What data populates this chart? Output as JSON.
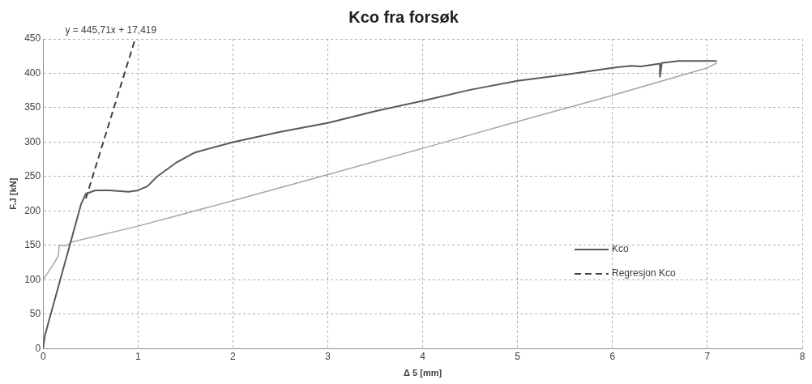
{
  "chart_data": {
    "type": "line",
    "title": "Kco fra forsøk",
    "xlabel": "Δ 5 [mm]",
    "ylabel": "F.J [kN]",
    "xlim": [
      0,
      8
    ],
    "xticks": [
      0,
      1,
      2,
      3,
      4,
      5,
      6,
      7,
      8
    ],
    "ylim": [
      0,
      450
    ],
    "yticks": [
      0,
      50,
      100,
      150,
      200,
      250,
      300,
      350,
      400,
      450
    ],
    "grid": true,
    "legend": "right",
    "marker": "none",
    "annotations": [
      {
        "text": "y = 445,71x + 17,419",
        "x": 0.97,
        "y": 450
      }
    ],
    "series": [
      {
        "name": "Kco",
        "color": "#595959",
        "line_style": "solid",
        "x": [
          0,
          0.02,
          0.1,
          0.2,
          0.3,
          0.4,
          0.45,
          0.55,
          0.7,
          0.9,
          1.0,
          1.1,
          1.2,
          1.4,
          1.6,
          2,
          2.5,
          3,
          3.5,
          4,
          4.5,
          5,
          5.5,
          6,
          6.2,
          6.3,
          6.5,
          6.5,
          6.52,
          6.7,
          7.1
        ],
        "values": [
          0,
          20,
          60,
          110,
          160,
          210,
          225,
          230,
          230,
          228,
          230,
          236,
          250,
          270,
          285,
          300,
          315,
          328,
          345,
          360,
          376,
          389,
          398,
          408,
          411,
          410,
          414,
          395,
          415,
          418,
          418
        ]
      },
      {
        "color": "#a6a6a6",
        "line_style": "solid",
        "x": [
          0,
          0.12,
          0.16,
          0.17,
          0.25,
          0.3,
          1,
          2,
          3,
          4,
          5,
          6,
          7,
          7.1
        ],
        "values": [
          100,
          125,
          135,
          150,
          150,
          155,
          178,
          215,
          253,
          291,
          330,
          368,
          408,
          415
        ]
      },
      {
        "name": "Regresjon Kco",
        "color": "#404040",
        "line_style": "dashed",
        "x": [
          0.45,
          0.97
        ],
        "values": [
          218,
          450
        ]
      }
    ]
  }
}
